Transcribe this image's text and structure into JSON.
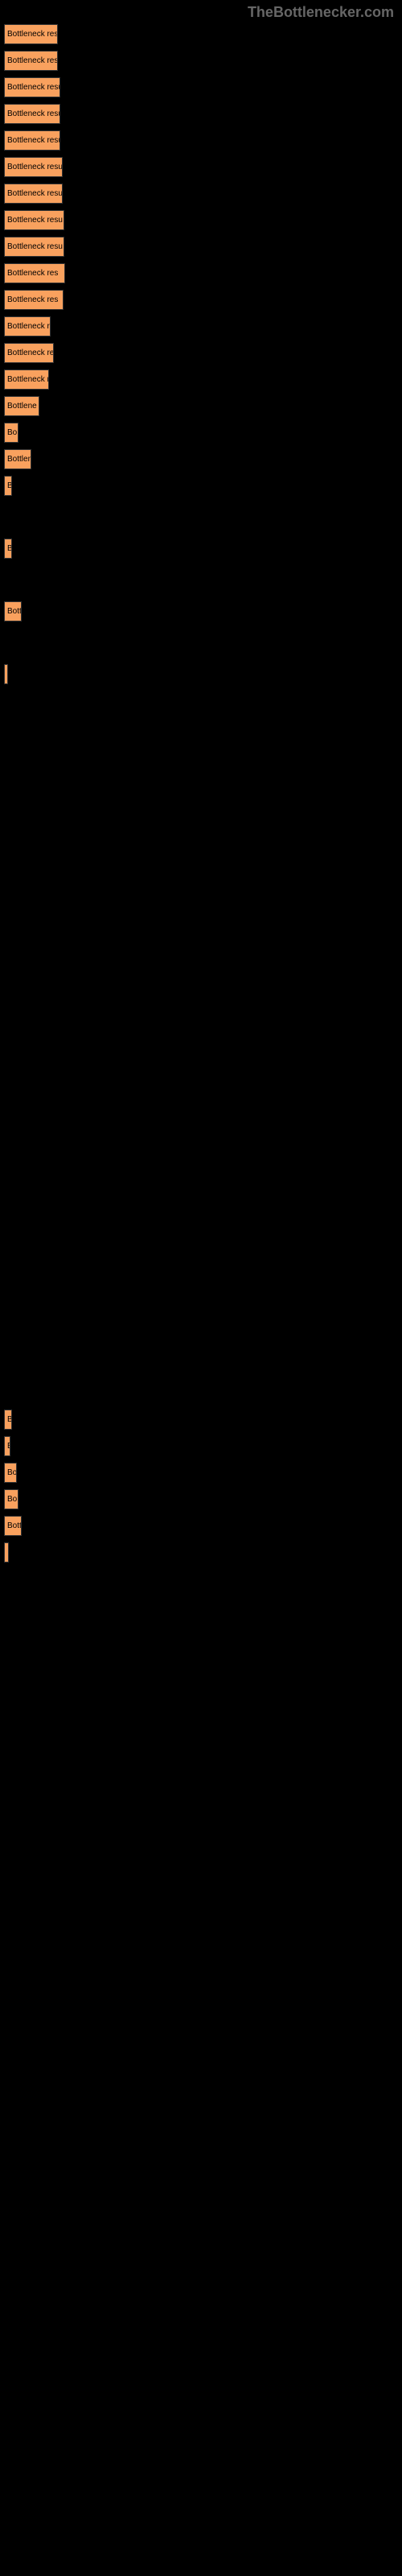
{
  "watermark": "TheBottlenecker.com",
  "chart": {
    "type": "bar",
    "bar_color": "#f9a15e",
    "background_color": "#000000",
    "label_color": "#f9a15e",
    "bar_text_color": "#000000",
    "font_size": 10,
    "max_width": 490,
    "rows": [
      {
        "width": 67,
        "bar_text": "Bottleneck resul",
        "label": "",
        "spacer": false
      },
      {
        "width": 67,
        "bar_text": "Bottleneck resul",
        "label": "",
        "spacer": false
      },
      {
        "width": 70,
        "bar_text": "Bottleneck resu",
        "label": "",
        "spacer": false
      },
      {
        "width": 70,
        "bar_text": "Bottleneck resu",
        "label": "",
        "spacer": false
      },
      {
        "width": 70,
        "bar_text": "Bottleneck resu",
        "label": "",
        "spacer": false
      },
      {
        "width": 73,
        "bar_text": "Bottleneck resu",
        "label": "",
        "spacer": false
      },
      {
        "width": 73,
        "bar_text": "Bottleneck resu",
        "label": "",
        "spacer": false
      },
      {
        "width": 75,
        "bar_text": "Bottleneck resu",
        "label": "",
        "spacer": false
      },
      {
        "width": 75,
        "bar_text": "Bottleneck resu",
        "label": "",
        "spacer": false
      },
      {
        "width": 76,
        "bar_text": "Bottleneck res",
        "label": "",
        "spacer": false
      },
      {
        "width": 74,
        "bar_text": "Bottleneck res",
        "label": "",
        "spacer": false
      },
      {
        "width": 58,
        "bar_text": "Bottleneck re",
        "label": "",
        "spacer": false
      },
      {
        "width": 62,
        "bar_text": "Bottleneck re",
        "label": "",
        "spacer": false
      },
      {
        "width": 56,
        "bar_text": "Bottleneck r",
        "label": "",
        "spacer": false
      },
      {
        "width": 44,
        "bar_text": "Bottlene",
        "label": "",
        "spacer": false
      },
      {
        "width": 18,
        "bar_text": "Bo",
        "label": "",
        "spacer": false
      },
      {
        "width": 34,
        "bar_text": "Bottlen",
        "label": "",
        "spacer": false
      },
      {
        "width": 10,
        "bar_text": "B",
        "label": "",
        "spacer": true
      },
      {
        "width": 10,
        "bar_text": "B",
        "label": "",
        "spacer": true
      },
      {
        "width": 22,
        "bar_text": "Bott",
        "label": "",
        "spacer": true
      },
      {
        "width": 5,
        "bar_text": "",
        "label": "",
        "spacer": true
      },
      {
        "width": 0,
        "bar_text": "",
        "label": "",
        "spacer": true
      },
      {
        "width": 0,
        "bar_text": "",
        "label": "",
        "spacer": true
      },
      {
        "width": 0,
        "bar_text": "",
        "label": "",
        "spacer": true
      },
      {
        "width": 0,
        "bar_text": "",
        "label": "",
        "spacer": true
      },
      {
        "width": 0,
        "bar_text": "",
        "label": "",
        "spacer": true
      },
      {
        "width": 0,
        "bar_text": "",
        "label": "",
        "spacer": true
      },
      {
        "width": 0,
        "bar_text": "",
        "label": "",
        "spacer": true
      },
      {
        "width": 0,
        "bar_text": "",
        "label": "",
        "spacer": true
      },
      {
        "width": 0,
        "bar_text": "",
        "label": "",
        "spacer": true
      },
      {
        "width": 0,
        "bar_text": "",
        "label": "",
        "spacer": true
      },
      {
        "width": 0,
        "bar_text": "",
        "label": "",
        "spacer": true
      },
      {
        "width": 0,
        "bar_text": "",
        "label": "",
        "spacer": true
      },
      {
        "width": 0,
        "bar_text": "",
        "label": "",
        "spacer": true
      },
      {
        "width": 0,
        "bar_text": "",
        "label": "",
        "spacer": true
      },
      {
        "width": 0,
        "bar_text": "",
        "label": "",
        "spacer": true
      },
      {
        "width": 0,
        "bar_text": "",
        "label": "",
        "spacer": true
      },
      {
        "width": 10,
        "bar_text": "B",
        "label": "",
        "spacer": false
      },
      {
        "width": 8,
        "bar_text": "B",
        "label": "",
        "spacer": false
      },
      {
        "width": 16,
        "bar_text": "Bo",
        "label": "",
        "spacer": false
      },
      {
        "width": 18,
        "bar_text": "Bo",
        "label": "",
        "spacer": false
      },
      {
        "width": 22,
        "bar_text": "Bott",
        "label": "",
        "spacer": false
      },
      {
        "width": 6,
        "bar_text": "",
        "label": "",
        "spacer": false
      }
    ]
  }
}
